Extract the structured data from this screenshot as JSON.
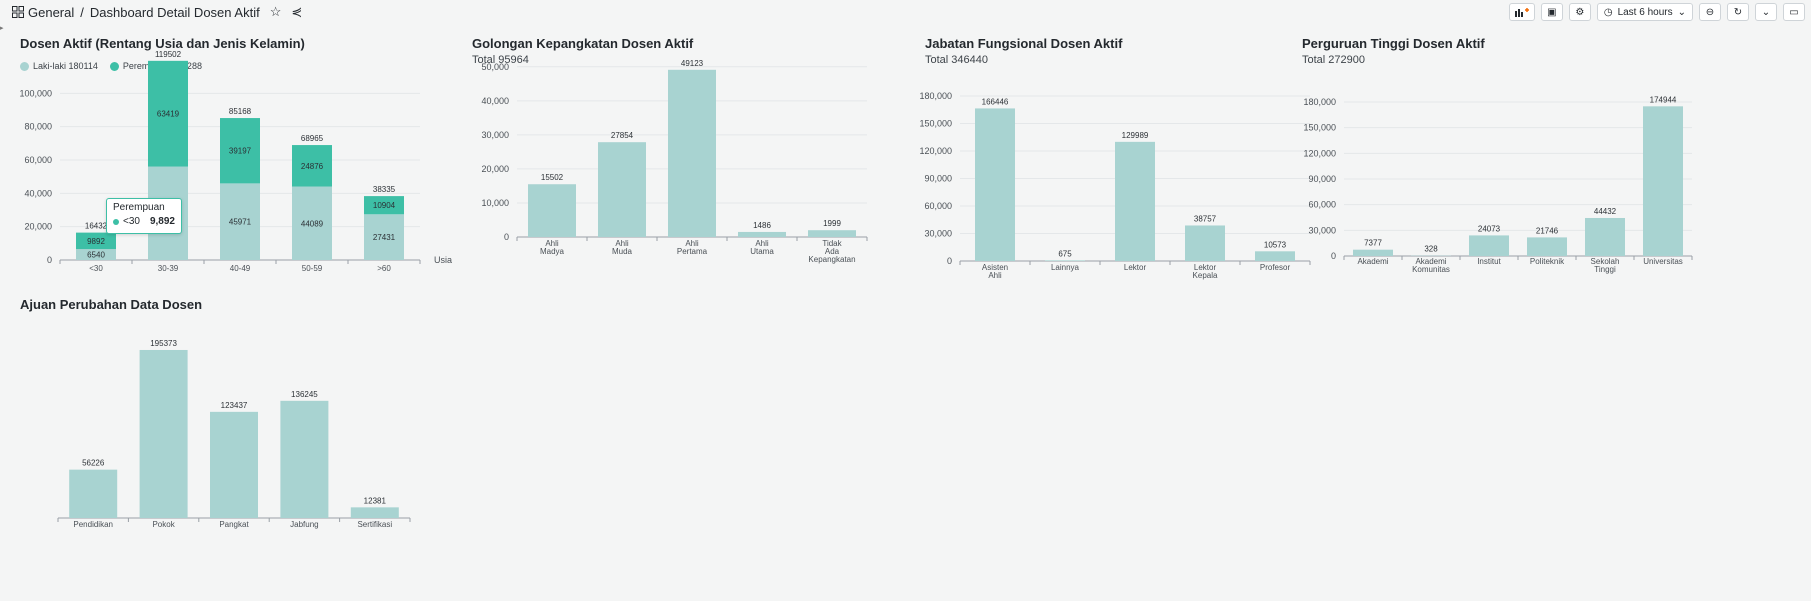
{
  "header": {
    "breadcrumb_root": "General",
    "breadcrumb_sep": "/",
    "breadcrumb_page": "Dashboard Detail Dosen Aktif",
    "time_range": "Last 6 hours"
  },
  "colors": {
    "primary": "#a8d3d1",
    "secondary": "#3dbfa6",
    "axis": "#8a9096"
  },
  "panels": {
    "p1": {
      "title": "Dosen Aktif (Rentang Usia dan Jenis Kelamin)"
    },
    "p2": {
      "title": "Golongan Kepangkatan Dosen Aktif",
      "subtitle": "Total 95964"
    },
    "p3": {
      "title": "Jabatan Fungsional Dosen Aktif",
      "subtitle": "Total 346440"
    },
    "p4": {
      "title": "Perguruan Tinggi Dosen Aktif",
      "subtitle": "Total 272900"
    },
    "p5": {
      "title": "Ajuan Perubahan Data Dosen"
    }
  },
  "legend": {
    "laki": "Laki-laki 180114",
    "perempuan": "Perempuan 148288"
  },
  "tooltip": {
    "title": "Perempuan",
    "label": "<30",
    "value": "9,892"
  },
  "chart_data": [
    {
      "type": "bar",
      "title": "Dosen Aktif (Rentang Usia dan Jenis Kelamin)",
      "categories": [
        "<30",
        "30-39",
        "40-49",
        "50-59",
        ">60"
      ],
      "series": [
        {
          "name": "Laki-laki",
          "values": [
            6540,
            56083,
            45971,
            44089,
            27431
          ]
        },
        {
          "name": "Perempuan",
          "values": [
            9892,
            63419,
            39197,
            24876,
            10904
          ]
        }
      ],
      "segment_labels": [
        [
          "6540",
          "",
          "45971",
          "44089",
          "27431"
        ],
        [
          "9892",
          "63419",
          "39197",
          "24876",
          "10904"
        ]
      ],
      "totals": [
        "16432",
        "119502",
        "85168",
        "68965",
        "38335"
      ],
      "xlabel": "Usia",
      "yticks": [
        "0",
        "20,000",
        "40,000",
        "60,000",
        "80,000",
        "100,000"
      ],
      "ylim": [
        0,
        120000
      ]
    },
    {
      "type": "bar",
      "title": "Golongan Kepangkatan Dosen Aktif",
      "categories": [
        "Ahli Madya",
        "Ahli Muda",
        "Ahli Pertama",
        "Ahli Utama",
        "Tidak Ada Kepangkatan"
      ],
      "values": [
        15502,
        27854,
        49123,
        1486,
        1999
      ],
      "yticks": [
        "0",
        "10,000",
        "20,000",
        "30,000",
        "40,000",
        "50,000"
      ],
      "ylim": [
        0,
        52000
      ]
    },
    {
      "type": "bar",
      "title": "Jabatan Fungsional Dosen Aktif",
      "categories": [
        "Asisten Ahli",
        "Lainnya",
        "Lektor",
        "Lektor Kepala",
        "Profesor"
      ],
      "values": [
        166446,
        675,
        129989,
        38757,
        10573
      ],
      "yticks": [
        "0",
        "30,000",
        "60,000",
        "90,000",
        "120,000",
        "150,000",
        "180,000"
      ],
      "ylim": [
        0,
        180000
      ]
    },
    {
      "type": "bar",
      "title": "Perguruan Tinggi Dosen Aktif",
      "categories": [
        "Akademi",
        "Akademi Komunitas",
        "Institut",
        "Politeknik",
        "Sekolah Tinggi",
        "Universitas"
      ],
      "values": [
        7377,
        328,
        24073,
        21746,
        44432,
        174944
      ],
      "yticks": [
        "0",
        "30,000",
        "60,000",
        "90,000",
        "120,000",
        "150,000",
        "180,000"
      ],
      "ylim": [
        0,
        180000
      ]
    },
    {
      "type": "bar",
      "title": "Ajuan Perubahan Data Dosen",
      "categories": [
        "Pendidikan",
        "Pokok",
        "Pangkat",
        "Jabfung",
        "Sertifikasi"
      ],
      "values": [
        56226,
        195373,
        123437,
        136245,
        12381
      ],
      "ylim": [
        0,
        200000
      ]
    }
  ]
}
